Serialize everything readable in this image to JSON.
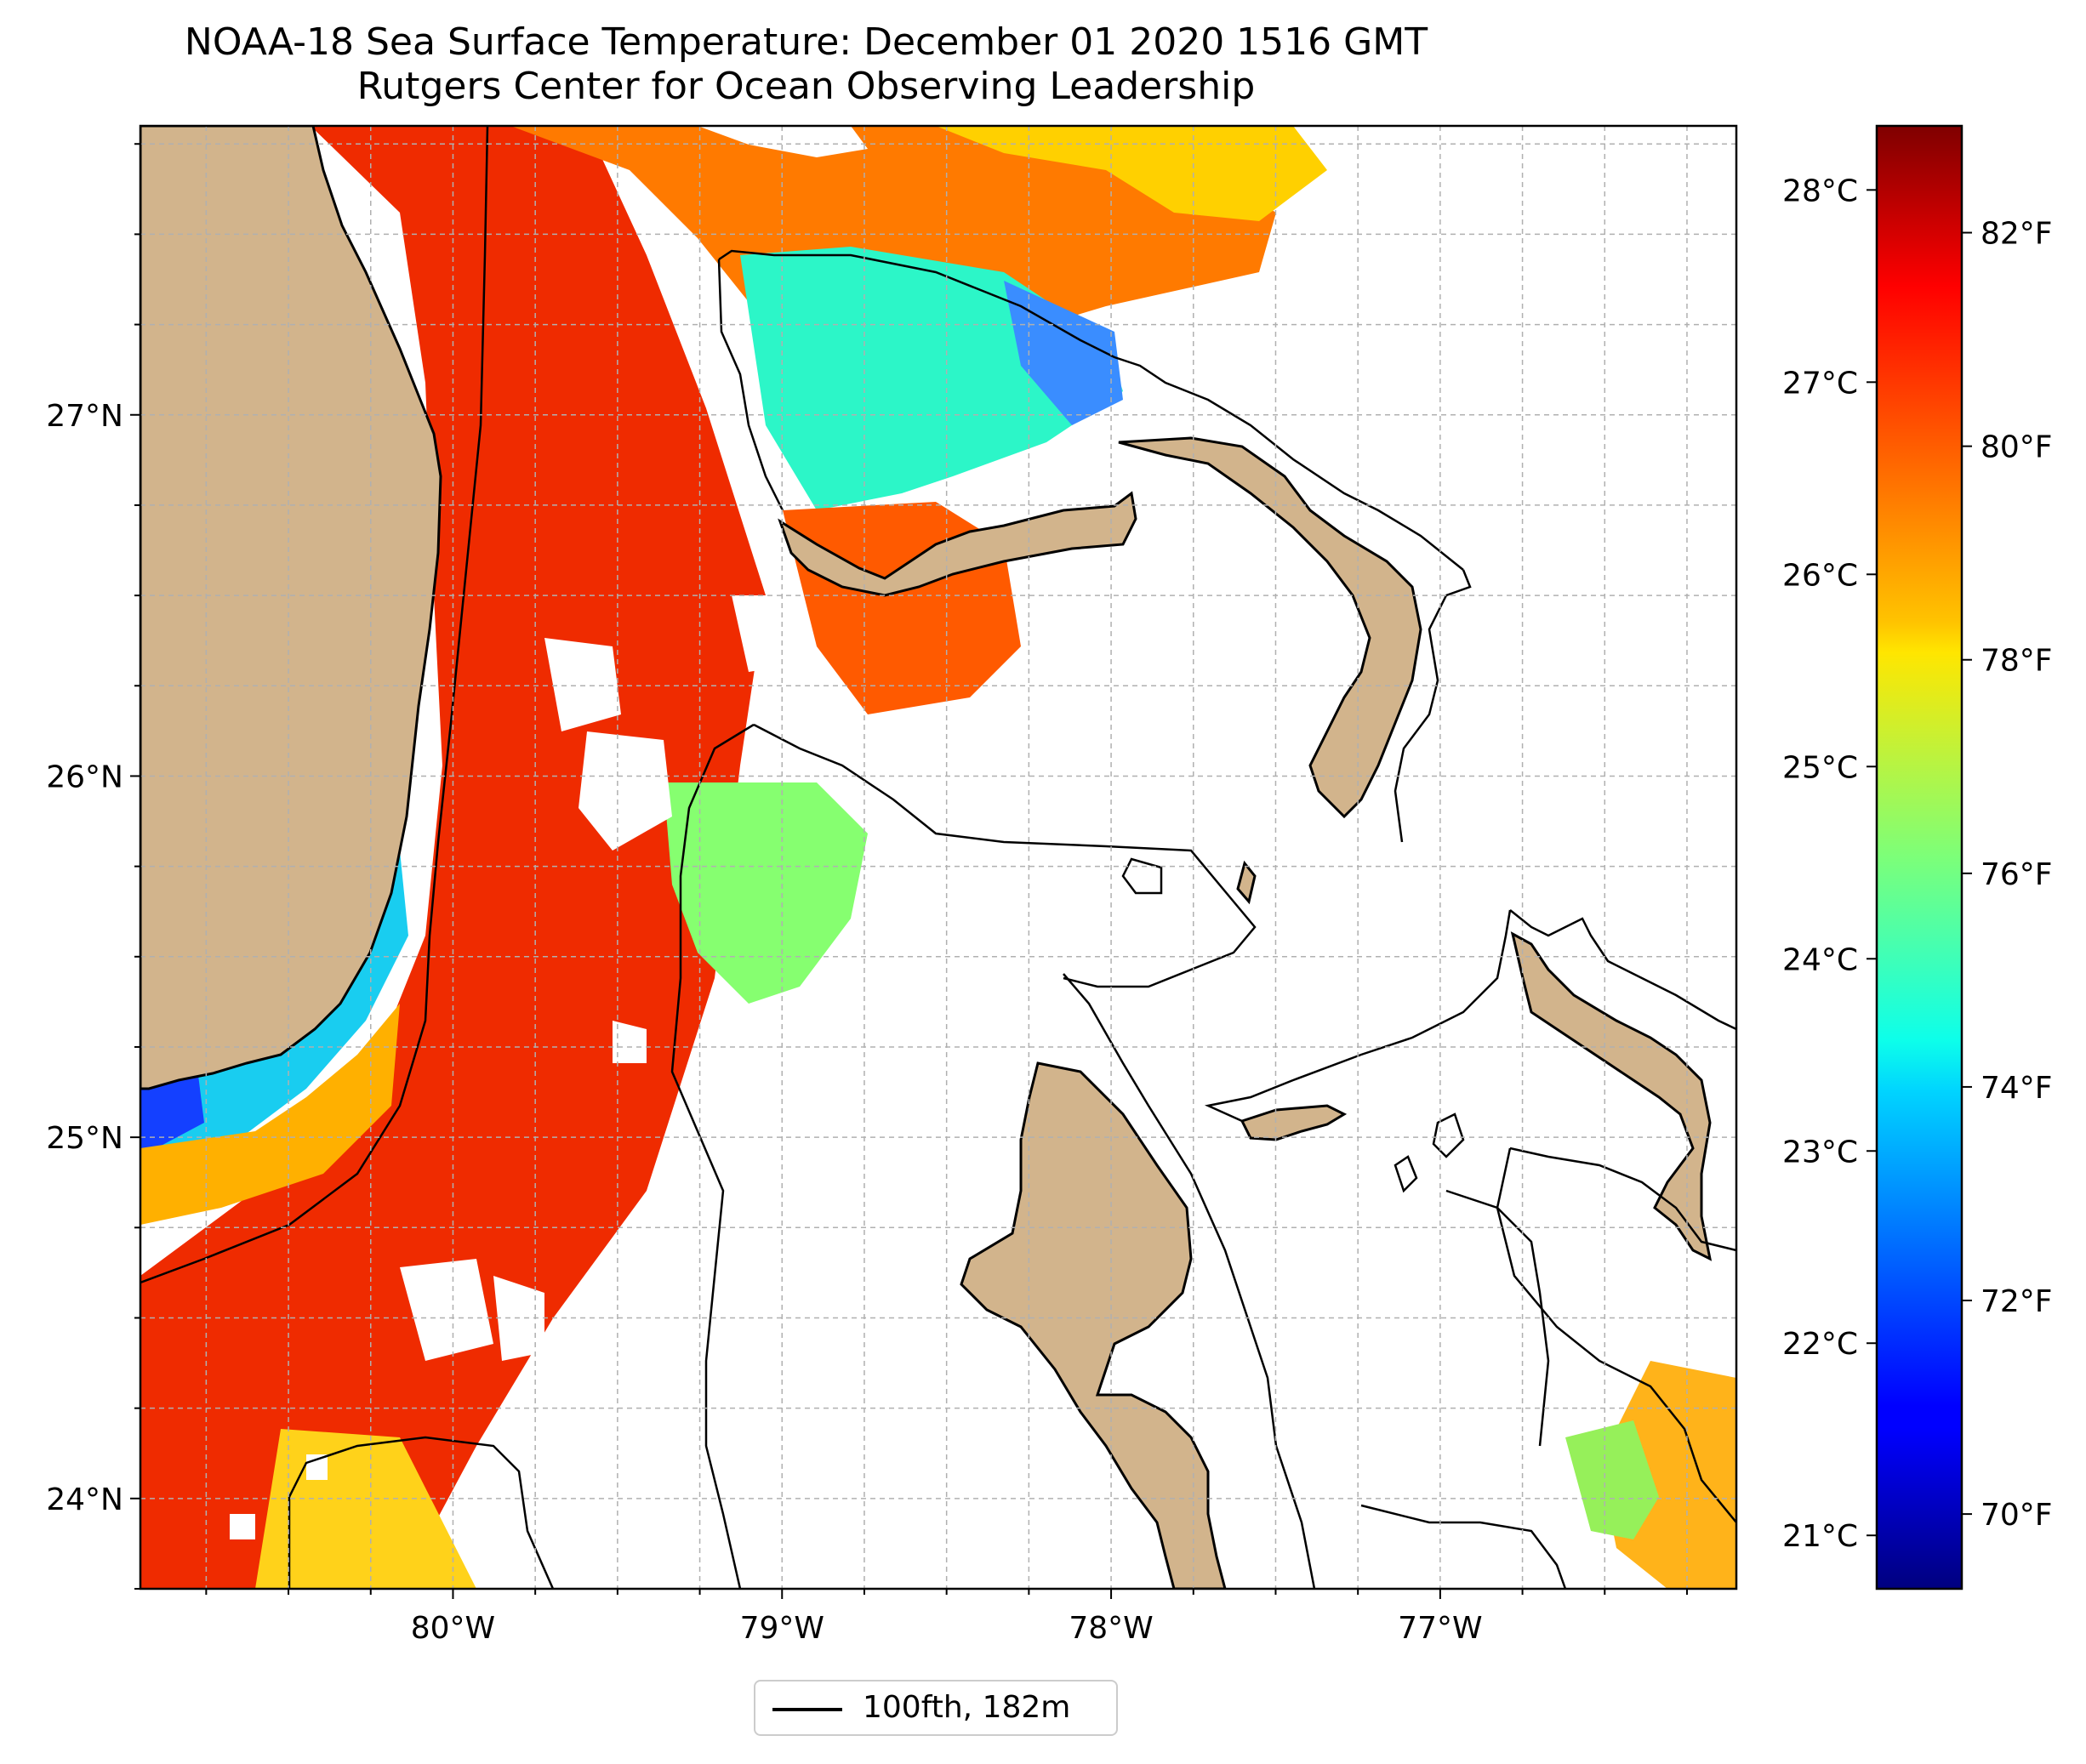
{
  "header": {
    "title": "NOAA-18 Sea Surface Temperature: December 01 2020 1516 GMT",
    "subtitle": "Rutgers Center for Ocean Observing Leadership"
  },
  "map": {
    "extent": {
      "lon_min": -80.95,
      "lon_max": -76.1,
      "lat_min": 23.75,
      "lat_max": 27.8
    },
    "lon_ticks": [
      {
        "value": -80,
        "label": "80°W"
      },
      {
        "value": -79,
        "label": "79°W"
      },
      {
        "value": -78,
        "label": "78°W"
      },
      {
        "value": -77,
        "label": "77°W"
      }
    ],
    "lat_ticks": [
      {
        "value": 24,
        "label": "24°N"
      },
      {
        "value": 25,
        "label": "25°N"
      },
      {
        "value": 26,
        "label": "26°N"
      },
      {
        "value": 27,
        "label": "27°N"
      }
    ],
    "gridlines": true,
    "land_color": "#d2b48c",
    "no_data_color": "#ffffff",
    "variable": "sea surface temperature"
  },
  "colorbar": {
    "colormap": "jet",
    "range_f": [
      69.3,
      83.0
    ],
    "celsius_ticks": [
      {
        "value": 21,
        "label": "21°C"
      },
      {
        "value": 22,
        "label": "22°C"
      },
      {
        "value": 23,
        "label": "23°C"
      },
      {
        "value": 24,
        "label": "24°C"
      },
      {
        "value": 25,
        "label": "25°C"
      },
      {
        "value": 26,
        "label": "26°C"
      },
      {
        "value": 27,
        "label": "27°C"
      },
      {
        "value": 28,
        "label": "28°C"
      }
    ],
    "fahrenheit_ticks": [
      {
        "value": 70,
        "label": "70°F"
      },
      {
        "value": 72,
        "label": "72°F"
      },
      {
        "value": 74,
        "label": "74°F"
      },
      {
        "value": 76,
        "label": "76°F"
      },
      {
        "value": 78,
        "label": "78°F"
      },
      {
        "value": 80,
        "label": "80°F"
      },
      {
        "value": 82,
        "label": "82°F"
      }
    ]
  },
  "legend": {
    "line_label": "100fth, 182m",
    "line_color": "#000000"
  }
}
